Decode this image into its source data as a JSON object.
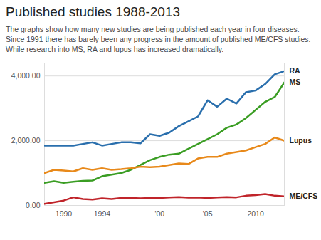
{
  "chart_data": {
    "type": "line",
    "title": "Published studies 1988-2013",
    "subtitle": "The graphs show how many new studies are being published each year in four diseases. Since 1991 there has barely been any progress in the amount of published ME/CFS studies. While research into MS, RA and lupus has increased dramatically.",
    "x": [
      1988,
      1989,
      1990,
      1991,
      1992,
      1993,
      1994,
      1995,
      1996,
      1997,
      1998,
      1999,
      2000,
      2001,
      2002,
      2003,
      2004,
      2005,
      2006,
      2007,
      2008,
      2009,
      2010,
      2011,
      2012,
      2013
    ],
    "series": [
      {
        "name": "RA",
        "color": "#2a6fad",
        "values": [
          1850,
          1850,
          1850,
          1850,
          1900,
          1950,
          1850,
          1900,
          1950,
          1950,
          1920,
          2200,
          2150,
          2250,
          2450,
          2600,
          2750,
          3250,
          3050,
          3300,
          3150,
          3500,
          3550,
          3750,
          4050,
          4150
        ]
      },
      {
        "name": "MS",
        "color": "#3a9d23",
        "values": [
          700,
          750,
          700,
          730,
          760,
          770,
          900,
          950,
          1000,
          1100,
          1250,
          1400,
          1500,
          1570,
          1600,
          1750,
          1900,
          2050,
          2200,
          2400,
          2500,
          2700,
          2950,
          3200,
          3350,
          3800
        ]
      },
      {
        "name": "Lupus",
        "color": "#e8891a",
        "values": [
          1000,
          1100,
          1080,
          1050,
          1150,
          1100,
          1150,
          1100,
          1120,
          1150,
          1200,
          1180,
          1200,
          1250,
          1300,
          1280,
          1450,
          1500,
          1500,
          1600,
          1650,
          1700,
          1800,
          1900,
          2100,
          2000
        ]
      },
      {
        "name": "ME/CFS",
        "color": "#c0242a",
        "values": [
          50,
          100,
          150,
          250,
          200,
          180,
          220,
          200,
          230,
          230,
          220,
          230,
          230,
          250,
          260,
          240,
          250,
          230,
          250,
          260,
          250,
          300,
          320,
          350,
          300,
          280
        ]
      }
    ],
    "xlim": [
      1988,
      2013
    ],
    "xticks": [
      1990,
      1994,
      {
        "value": 2000,
        "label": "'00"
      },
      {
        "value": 2005,
        "label": "'05"
      },
      2010
    ],
    "ylim": [
      0,
      4400
    ],
    "yticks": [
      {
        "value": 0,
        "label": "0.00"
      },
      {
        "value": 2000,
        "label": "2,000.00"
      },
      {
        "value": 4000,
        "label": "4,000.00"
      }
    ],
    "grid": true
  }
}
